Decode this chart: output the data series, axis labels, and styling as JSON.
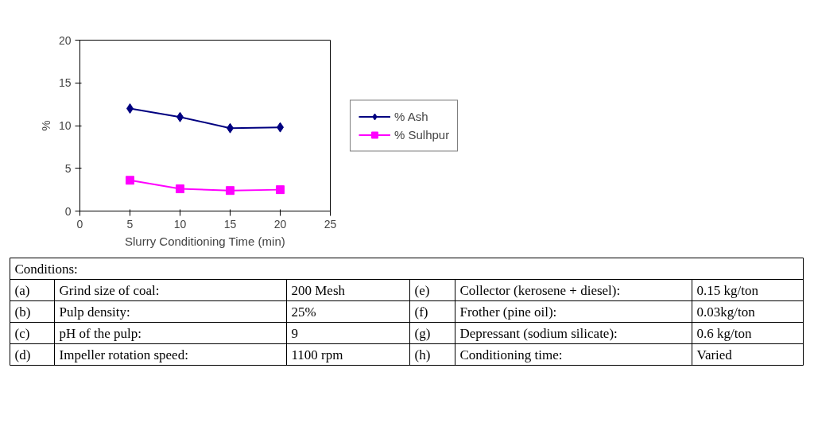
{
  "chart_data": [
    {
      "type": "line",
      "xlabel": "Slurry Conditioning Time (min)",
      "ylabel": "%",
      "x": [
        5,
        10,
        15,
        20
      ],
      "series": [
        {
          "name": "% Ash",
          "color": "#000080",
          "marker": "diamond",
          "values": [
            12,
            11,
            9.7,
            9.8
          ]
        },
        {
          "name": "% Sulhpur",
          "color": "#ff00ff",
          "marker": "square",
          "values": [
            3.6,
            2.6,
            2.4,
            2.5
          ]
        }
      ],
      "xlim": [
        0,
        25
      ],
      "xticks": [
        0,
        5,
        10,
        15,
        20,
        25
      ],
      "ylim": [
        0,
        20
      ],
      "yticks": [
        0,
        5,
        10,
        15,
        20
      ],
      "grid": false,
      "legend": "right"
    },
    {
      "type": "other",
      "annotations": [
        "Conditions:",
        "(a)",
        "Grind size of coal:",
        "200 Mesh",
        "(e)",
        "Collector (kerosene + diesel):",
        "0.15 kg/ton",
        "(b)",
        "Pulp density:",
        "25%",
        "(f)",
        "Frother (pine oil):",
        "0.03kg/ton",
        "(c)",
        "pH of the pulp:",
        "9",
        "(g)",
        "Depressant (sodium silicate):",
        "0.6 kg/ton",
        "(d)",
        "Impeller rotation speed:",
        "1100 rpm",
        "(h)",
        "Conditioning time:",
        "Varied"
      ]
    }
  ]
}
